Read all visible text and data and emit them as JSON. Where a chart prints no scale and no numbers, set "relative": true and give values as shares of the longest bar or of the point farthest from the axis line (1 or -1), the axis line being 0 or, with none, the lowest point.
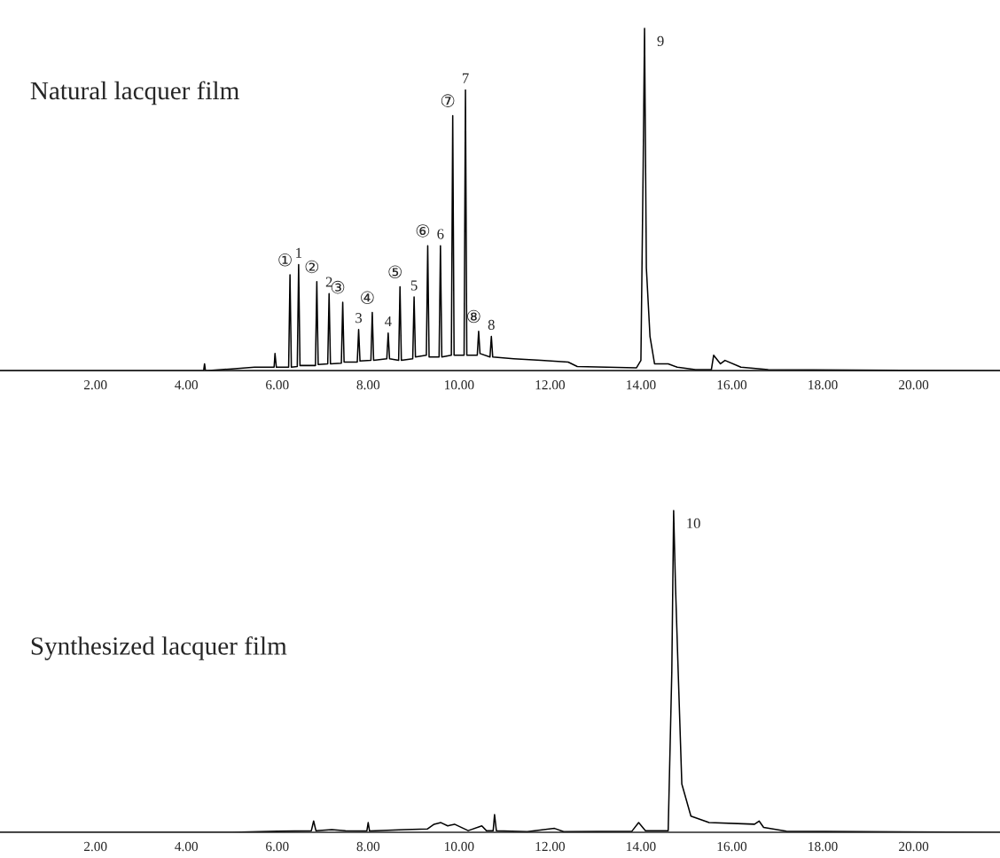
{
  "chart_data": [
    {
      "type": "line",
      "title": "Natural lacquer film",
      "relative": true,
      "xlim": [
        -0.1,
        21.9
      ],
      "xticks": [
        {
          "value": 2,
          "label": "2.00"
        },
        {
          "value": 4,
          "label": "4.00"
        },
        {
          "value": 6,
          "label": "6.00"
        },
        {
          "value": 8,
          "label": "8.00"
        },
        {
          "value": 10,
          "label": "10.00"
        },
        {
          "value": 12,
          "label": "12.00"
        },
        {
          "value": 14,
          "label": "14.00"
        },
        {
          "value": 16,
          "label": "16.00"
        },
        {
          "value": 18,
          "label": "18.00"
        },
        {
          "value": 20,
          "label": "20.00"
        }
      ],
      "tick_labels": "x",
      "grid": false,
      "legend": false,
      "series": [
        {
          "color": "#000000",
          "x": [
            -0.1,
            3.5,
            4.38,
            4.4,
            4.42,
            5.0,
            5.5,
            5.93,
            5.95,
            5.98,
            6.25,
            6.28,
            6.31,
            6.44,
            6.47,
            6.5,
            6.84,
            6.87,
            6.9,
            7.11,
            7.14,
            7.17,
            7.41,
            7.44,
            7.47,
            7.76,
            7.79,
            7.82,
            8.06,
            8.09,
            8.12,
            8.41,
            8.44,
            8.47,
            8.67,
            8.7,
            8.73,
            8.98,
            9.01,
            9.04,
            9.28,
            9.31,
            9.34,
            9.56,
            9.59,
            9.62,
            9.83,
            9.86,
            9.89,
            10.11,
            10.14,
            10.17,
            10.4,
            10.43,
            10.46,
            10.68,
            10.71,
            10.74,
            11.2,
            11.8,
            12.4,
            12.6,
            13.9,
            14.0,
            14.05,
            14.08,
            14.12,
            14.2,
            14.3,
            14.6,
            14.8,
            15.2,
            15.55,
            15.6,
            15.75,
            15.85,
            16.2,
            16.8,
            21.9
          ],
          "values": [
            0,
            0,
            0,
            0.02,
            0,
            0.005,
            0.01,
            0.01,
            0.05,
            0.01,
            0.01,
            0.28,
            0.01,
            0.012,
            0.31,
            0.015,
            0.015,
            0.26,
            0.018,
            0.02,
            0.225,
            0.02,
            0.022,
            0.2,
            0.025,
            0.025,
            0.12,
            0.028,
            0.03,
            0.17,
            0.03,
            0.035,
            0.11,
            0.035,
            0.03,
            0.245,
            0.03,
            0.035,
            0.215,
            0.04,
            0.045,
            0.365,
            0.04,
            0.04,
            0.365,
            0.04,
            0.045,
            0.745,
            0.045,
            0.045,
            0.82,
            0.045,
            0.045,
            0.115,
            0.05,
            0.04,
            0.1,
            0.04,
            0.035,
            0.03,
            0.025,
            0.012,
            0.008,
            0.03,
            0.6,
            1.0,
            0.3,
            0.1,
            0.02,
            0.02,
            0.01,
            0.003,
            0.003,
            0.045,
            0.02,
            0.03,
            0.01,
            0.003,
            0
          ]
        }
      ],
      "annotations": [
        {
          "text": "①",
          "x": 6.28,
          "y": 0.28
        },
        {
          "text": "1",
          "x": 6.47,
          "y": 0.31
        },
        {
          "text": "②",
          "x": 6.87,
          "y": 0.26
        },
        {
          "text": "2",
          "x": 7.14,
          "y": 0.225
        },
        {
          "text": "③",
          "x": 7.44,
          "y": 0.2
        },
        {
          "text": "3",
          "x": 7.79,
          "y": 0.12
        },
        {
          "text": "④",
          "x": 8.09,
          "y": 0.17
        },
        {
          "text": "4",
          "x": 8.44,
          "y": 0.11
        },
        {
          "text": "⑤",
          "x": 8.7,
          "y": 0.245
        },
        {
          "text": "5",
          "x": 9.01,
          "y": 0.215
        },
        {
          "text": "⑥",
          "x": 9.31,
          "y": 0.365
        },
        {
          "text": "6",
          "x": 9.59,
          "y": 0.365
        },
        {
          "text": "⑦",
          "x": 9.86,
          "y": 0.745
        },
        {
          "text": "7",
          "x": 10.14,
          "y": 0.82
        },
        {
          "text": "⑧",
          "x": 10.43,
          "y": 0.115
        },
        {
          "text": "8",
          "x": 10.71,
          "y": 0.1
        },
        {
          "text": "9",
          "x": 14.08,
          "y": 1.0
        }
      ]
    },
    {
      "type": "line",
      "title": "Synthesized lacquer film",
      "relative": true,
      "xlim": [
        -0.1,
        21.9
      ],
      "xticks": [
        {
          "value": 2,
          "label": "2.00"
        },
        {
          "value": 4,
          "label": "4.00"
        },
        {
          "value": 6,
          "label": "6.00"
        },
        {
          "value": 8,
          "label": "8.00"
        },
        {
          "value": 10,
          "label": "10.00"
        },
        {
          "value": 12,
          "label": "12.00"
        },
        {
          "value": 14,
          "label": "14.00"
        },
        {
          "value": 16,
          "label": "16.00"
        },
        {
          "value": 18,
          "label": "18.00"
        },
        {
          "value": 20,
          "label": "20.00"
        }
      ],
      "tick_labels": "x",
      "grid": false,
      "legend": false,
      "series": [
        {
          "color": "#000000",
          "x": [
            -0.1,
            5.0,
            6.0,
            6.75,
            6.8,
            6.85,
            7.2,
            7.5,
            7.97,
            8.0,
            8.03,
            8.8,
            9.3,
            9.45,
            9.6,
            9.75,
            9.9,
            10.2,
            10.5,
            10.6,
            10.75,
            10.78,
            10.82,
            11.5,
            12.1,
            12.3,
            13.8,
            13.95,
            14.1,
            14.6,
            14.68,
            14.72,
            14.76,
            14.82,
            14.9,
            15.1,
            15.5,
            16.5,
            16.6,
            16.7,
            17.2,
            21.9
          ],
          "values": [
            0,
            0,
            0.003,
            0.005,
            0.035,
            0.005,
            0.008,
            0.005,
            0.004,
            0.03,
            0.004,
            0.008,
            0.01,
            0.025,
            0.03,
            0.02,
            0.025,
            0.005,
            0.02,
            0.005,
            0.005,
            0.055,
            0.005,
            0.002,
            0.012,
            0.002,
            0.003,
            0.03,
            0.005,
            0.005,
            0.5,
            1.0,
            0.77,
            0.5,
            0.15,
            0.05,
            0.03,
            0.025,
            0.035,
            0.015,
            0.003,
            0
          ]
        }
      ],
      "annotations": [
        {
          "text": "10",
          "x": 14.72,
          "y": 1.0
        }
      ]
    }
  ]
}
